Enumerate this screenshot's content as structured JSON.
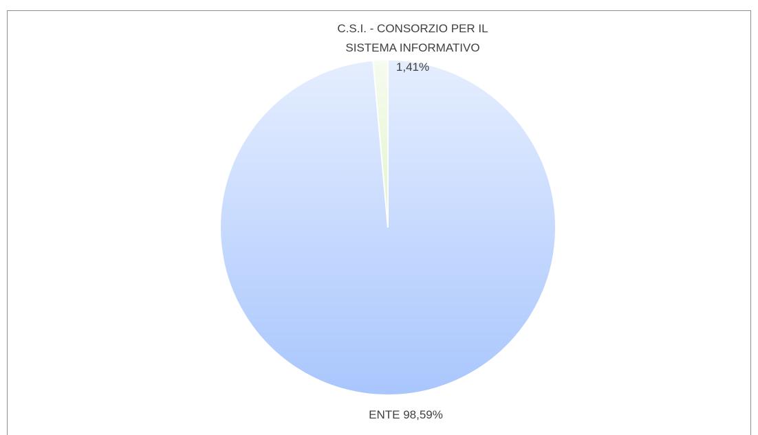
{
  "chart_data": {
    "type": "pie",
    "categories": [
      "ENTE",
      "C.S.I. - CONSORZIO PER IL SISTEMA INFORMATIVO"
    ],
    "values": [
      98.59,
      1.41
    ],
    "value_labels": [
      "98,59%",
      "1,41%"
    ],
    "colors": [
      "#a9c6fd",
      "#e2f4cb"
    ]
  }
}
